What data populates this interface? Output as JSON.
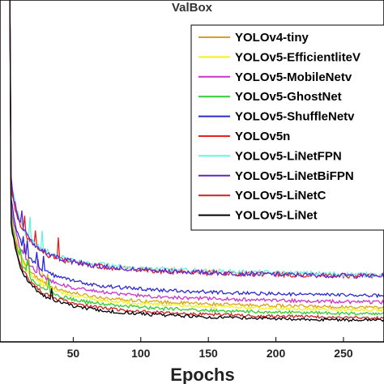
{
  "chart_data": {
    "type": "line",
    "title": "ValBox",
    "xlabel": "Epochs",
    "ylabel": "",
    "xlim": [
      0,
      280
    ],
    "xticks": [
      "50",
      "100",
      "150",
      "200",
      "250"
    ],
    "grid": false,
    "legend_placement": "top-right",
    "series": [
      {
        "name": "YOLOv4-tiny",
        "color": "#d9a21a",
        "start": 0.14,
        "end": 0.064,
        "noise": 0.0012
      },
      {
        "name": "YOLOv5-EfficientliteV",
        "color": "#f2f21a",
        "start": 0.138,
        "end": 0.062,
        "noise": 0.0012
      },
      {
        "name": "YOLOv5-MobileNetv",
        "color": "#cc33cc",
        "start": 0.145,
        "end": 0.068,
        "noise": 0.0013
      },
      {
        "name": "YOLOv5-GhostNet",
        "color": "#33cc33",
        "start": 0.136,
        "end": 0.059,
        "noise": 0.0012
      },
      {
        "name": "YOLOv5-ShuffleNetv",
        "color": "#2a2ad1",
        "start": 0.15,
        "end": 0.073,
        "noise": 0.0013
      },
      {
        "name": "YOLOv5n",
        "color": "#e52222",
        "start": 0.16,
        "end": 0.088,
        "noise": 0.0018
      },
      {
        "name": "YOLOv5-LiNetFPN",
        "color": "#66f2dd",
        "start": 0.165,
        "end": 0.089,
        "noise": 0.0018
      },
      {
        "name": "YOLOv5-LiNetBiFPN",
        "color": "#6622cc",
        "start": 0.163,
        "end": 0.088,
        "noise": 0.0018
      },
      {
        "name": "YOLOv5-LiNetC",
        "color": "#cc2222",
        "start": 0.133,
        "end": 0.056,
        "noise": 0.0011
      },
      {
        "name": "YOLOv5-LiNet",
        "color": "#000000",
        "start": 0.131,
        "end": 0.054,
        "noise": 0.0011
      }
    ]
  }
}
